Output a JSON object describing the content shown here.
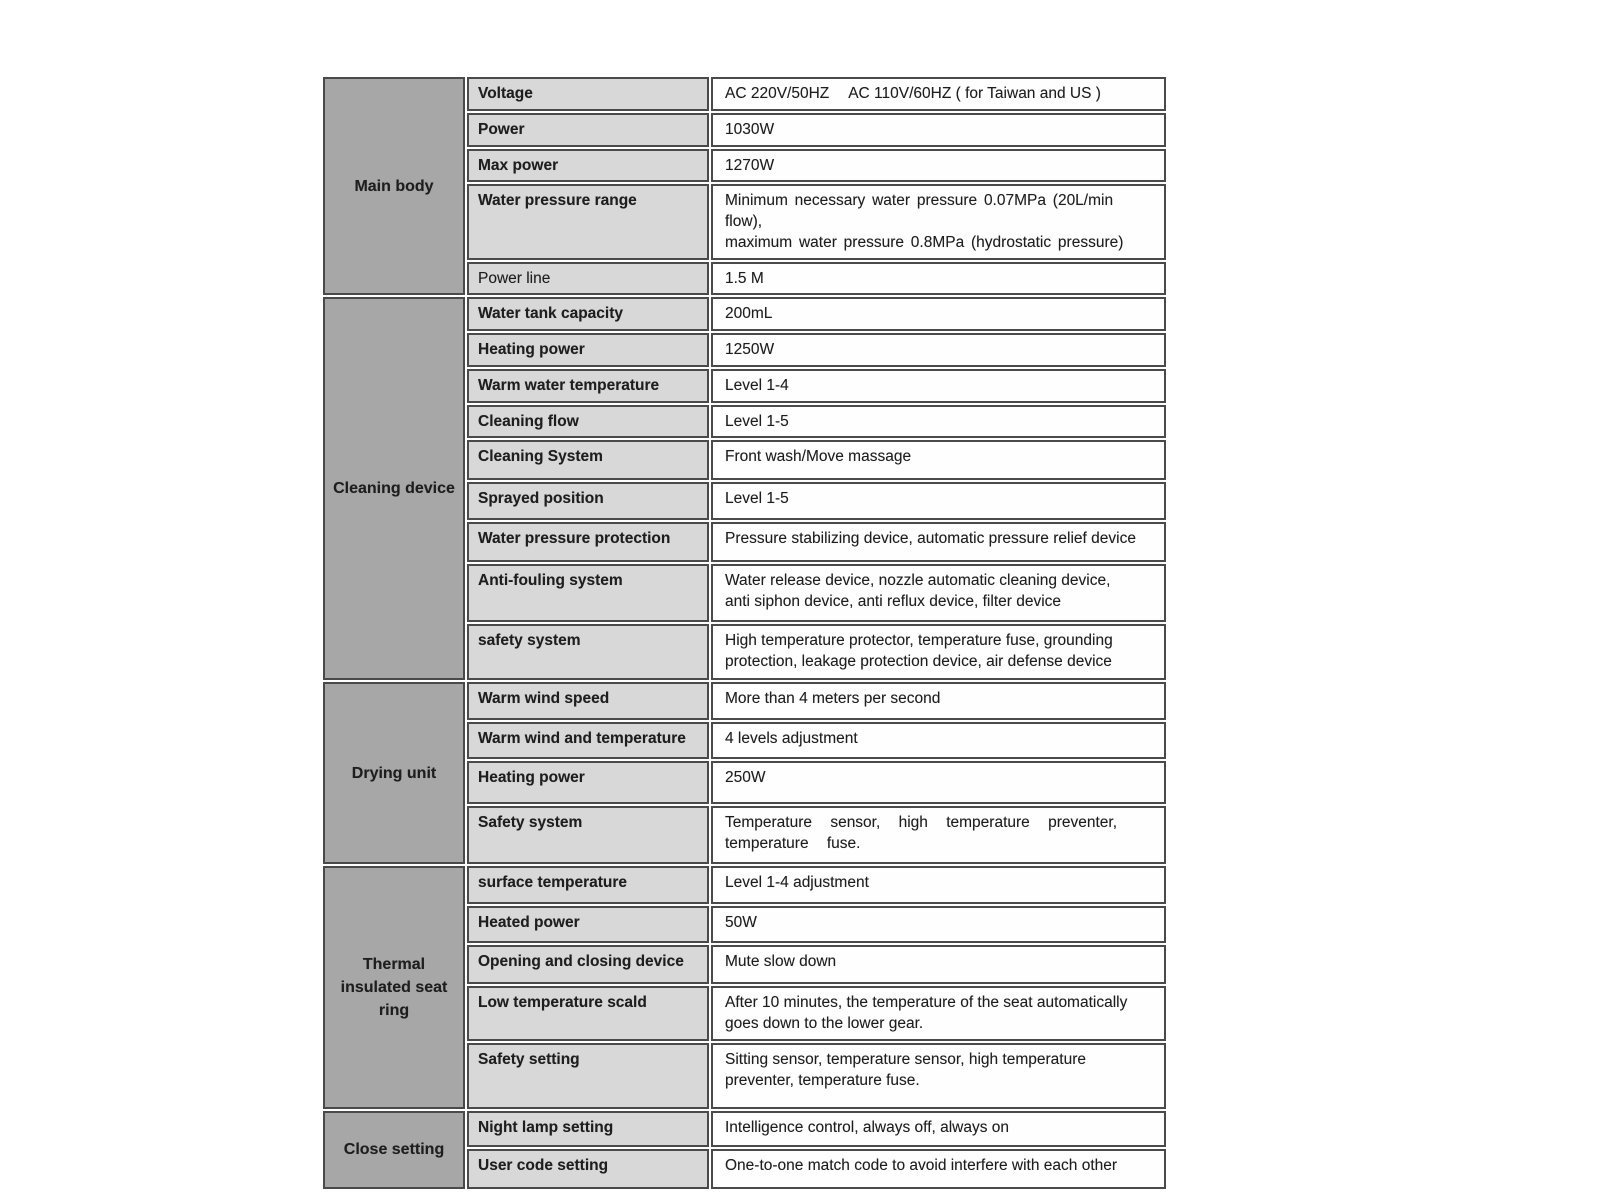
{
  "colors": {
    "category_background": "#a7a7a7",
    "label_background": "#d8d8d8",
    "value_background": "#fefefe",
    "border": "#4a4a4a",
    "text": "#1e1e1e"
  },
  "table": {
    "sections": [
      {
        "category": "Main body",
        "rows": [
          {
            "label": "Voltage",
            "value": "AC 220V/50HZ  AC 110V/60HZ ( for Taiwan and US )"
          },
          {
            "label": "Power",
            "value": "1030W"
          },
          {
            "label": "Max power",
            "value": "1270W"
          },
          {
            "label": "Water pressure range",
            "value": "Minimum necessary water pressure 0.07MPa (20L/min flow),\nmaximum water pressure 0.8MPa (hydrostatic pressure)",
            "value_style": "spread-sm"
          },
          {
            "label": "Power line",
            "value": "1.5 M",
            "label_plain": true
          }
        ]
      },
      {
        "category": "Cleaning device",
        "rows": [
          {
            "label": "Water tank capacity",
            "value": "200mL"
          },
          {
            "label": "Heating power",
            "value": "1250W"
          },
          {
            "label": "Warm water temperature",
            "value": "Level 1-4"
          },
          {
            "label": "Cleaning flow",
            "value": "Level 1-5"
          },
          {
            "label": "Cleaning System",
            "value": "Front wash/Move massage"
          },
          {
            "label": "Sprayed position",
            "value": "Level 1-5"
          },
          {
            "label": "Water pressure protection",
            "value": "Pressure stabilizing device, automatic pressure relief device"
          },
          {
            "label": "Anti-fouling system",
            "value": "Water release device, nozzle automatic cleaning device,\nanti siphon device, anti reflux device, filter device"
          },
          {
            "label": "safety system",
            "value": "High temperature protector, temperature fuse, grounding\nprotection, leakage protection device, air defense device"
          }
        ]
      },
      {
        "category": "Drying unit",
        "rows": [
          {
            "label": "Warm wind speed",
            "value": "More than 4 meters per second"
          },
          {
            "label": "Warm wind and temperature",
            "value": "4 levels adjustment"
          },
          {
            "label": "Heating power",
            "value": "250W"
          },
          {
            "label": "Safety system",
            "value": "Temperature sensor, high temperature preventer,\ntemperature fuse.",
            "value_style": "spread-lg"
          }
        ]
      },
      {
        "category": "Thermal\ninsulated seat\nring",
        "rows": [
          {
            "label": "surface temperature",
            "value": "Level 1-4 adjustment"
          },
          {
            "label": "Heated power",
            "value": "50W"
          },
          {
            "label": "Opening and closing device",
            "value": "Mute slow down"
          },
          {
            "label": "Low temperature scald",
            "value": "After 10 minutes, the temperature of the seat automatically\ngoes down to the lower gear."
          },
          {
            "label": "Safety setting",
            "value": "Sitting sensor, temperature sensor, high temperature\npreventer, temperature fuse."
          }
        ]
      },
      {
        "category": "Close setting",
        "rows": [
          {
            "label": "Night lamp setting",
            "value": "Intelligence control, always off, always on"
          },
          {
            "label": "User code setting",
            "value": "One-to-one match code to avoid interfere with each other"
          }
        ]
      }
    ]
  }
}
